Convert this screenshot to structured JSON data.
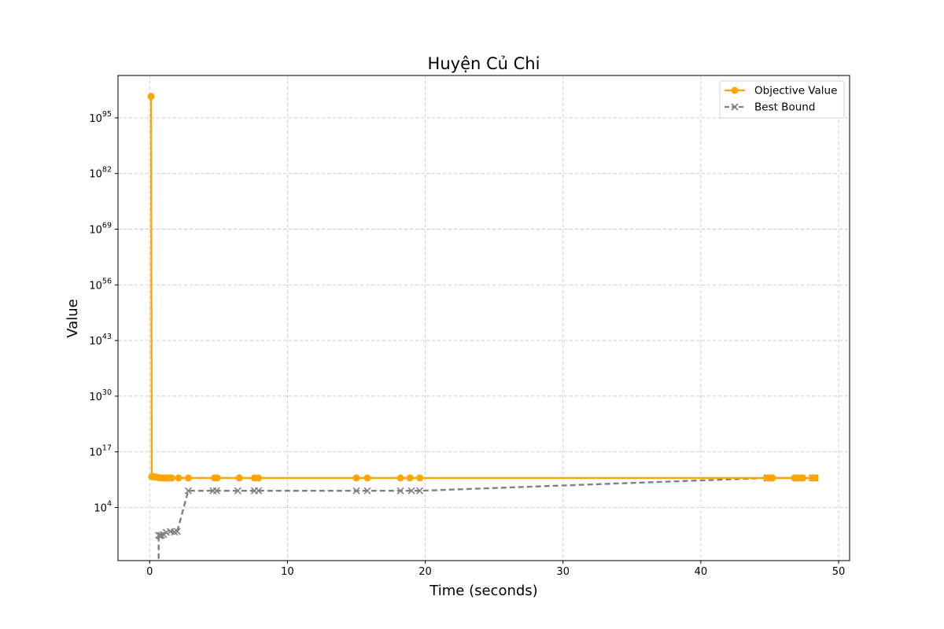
{
  "chart_data": {
    "type": "line",
    "title": "Huyện Củ Chi",
    "xlabel": "Time (seconds)",
    "ylabel": "Value",
    "y_scale": "log",
    "xlim": [
      -2.3,
      50.8
    ],
    "ylim_exponent": [
      -8.4,
      104.9
    ],
    "x_ticks": [
      0,
      10,
      20,
      30,
      40,
      50
    ],
    "x_tick_labels": [
      "0",
      "10",
      "20",
      "30",
      "40",
      "50"
    ],
    "y_ticks_exponent": [
      4,
      17,
      30,
      43,
      56,
      69,
      82,
      95
    ],
    "y_tick_labels": [
      "10",
      "10",
      "10",
      "10",
      "10",
      "10",
      "10",
      "10"
    ],
    "y_tick_superscripts": [
      "4",
      "17",
      "30",
      "43",
      "56",
      "69",
      "82",
      "95"
    ],
    "grid": true,
    "legend_position": "top-right",
    "series": [
      {
        "name": "Objective Value",
        "color": "#FFA500",
        "line_style": "solid",
        "marker": "circle",
        "x": [
          0.1,
          0.15,
          0.3,
          0.45,
          0.6,
          0.75,
          0.9,
          1.05,
          1.2,
          1.4,
          1.6,
          2.1,
          2.8,
          4.7,
          4.9,
          6.5,
          7.6,
          7.9,
          15.0,
          15.8,
          18.2,
          18.9,
          19.6,
          44.8,
          45.0,
          45.2,
          46.8,
          47.0,
          47.2,
          47.4,
          48.1,
          48.3
        ],
        "y_exponent": [
          100.0,
          11.2,
          11.2,
          11.1,
          11.0,
          10.9,
          10.9,
          10.9,
          10.9,
          10.9,
          10.9,
          10.9,
          10.9,
          10.9,
          10.9,
          10.9,
          10.9,
          10.9,
          10.9,
          10.9,
          10.9,
          10.9,
          10.9,
          10.9,
          10.9,
          10.9,
          10.9,
          10.9,
          10.9,
          10.9,
          10.9,
          10.9
        ]
      },
      {
        "name": "Best Bound",
        "color": "#808080",
        "line_style": "dashed",
        "marker": "x",
        "x": [
          0.65,
          0.65,
          0.75,
          0.85,
          1.0,
          1.2,
          1.5,
          1.8,
          2.0,
          2.8,
          4.6,
          4.85,
          6.4,
          7.6,
          7.9,
          15.0,
          15.8,
          18.2,
          19.0,
          19.6,
          44.8,
          45.1,
          46.9,
          47.1,
          47.3,
          48.1,
          48.3
        ],
        "y_exponent": [
          -10.0,
          -2.5,
          -2.6,
          -2.5,
          -2.3,
          -1.8,
          -1.6,
          -1.7,
          -1.6,
          7.9,
          7.9,
          7.9,
          7.9,
          7.9,
          7.9,
          7.9,
          7.9,
          7.9,
          7.9,
          7.9,
          10.9,
          10.9,
          10.9,
          10.9,
          10.9,
          10.9,
          10.9
        ]
      }
    ]
  }
}
